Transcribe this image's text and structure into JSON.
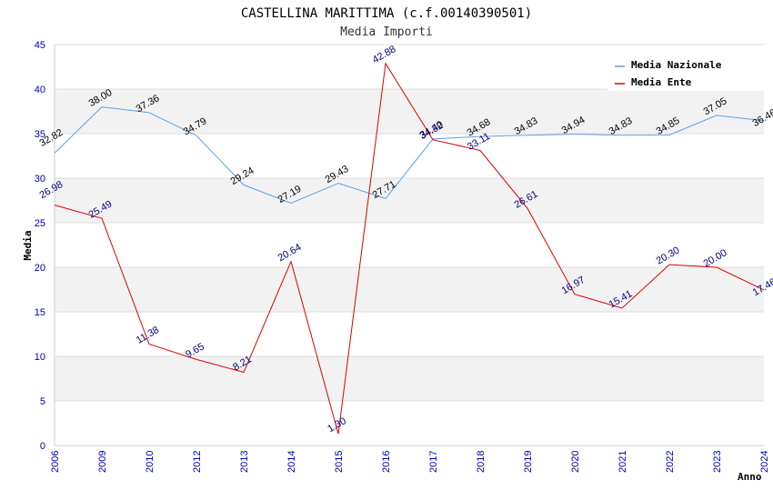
{
  "chart_data": {
    "type": "line",
    "title": "CASTELLINA MARITTIMA (c.f.00140390501)",
    "subtitle": "Media Importi",
    "xlabel": "Anno",
    "ylabel": "Media",
    "ylim": [
      0,
      45
    ],
    "yticks": [
      0,
      5,
      10,
      15,
      20,
      25,
      30,
      35,
      40,
      45
    ],
    "categories": [
      "2006",
      "2009",
      "2010",
      "2012",
      "2013",
      "2014",
      "2015",
      "2016",
      "2017",
      "2018",
      "2019",
      "2020",
      "2021",
      "2022",
      "2023",
      "2024"
    ],
    "legend_position": "top-right",
    "series": [
      {
        "name": "Media Nazionale",
        "color": "#5aa0e6",
        "values": [
          32.82,
          38.0,
          37.36,
          34.79,
          29.24,
          27.19,
          29.43,
          27.71,
          34.4,
          34.68,
          34.83,
          34.94,
          34.83,
          34.85,
          37.05,
          36.46
        ],
        "labels": [
          "32.82",
          "38.00",
          "37.36",
          "34.79",
          "29.24",
          "27.19",
          "29.43",
          "27.71",
          "34.40",
          "34.68",
          "34.83",
          "34.94",
          "34.83",
          "34.85",
          "37.05",
          "36.46"
        ]
      },
      {
        "name": "Media Ente",
        "color": "#e00000",
        "values": [
          26.98,
          25.49,
          11.38,
          9.65,
          8.21,
          20.64,
          1.3,
          42.88,
          34.32,
          33.11,
          26.61,
          16.97,
          15.41,
          20.3,
          20.0,
          17.46
        ],
        "labels": [
          "26.98",
          "25.49",
          "11.38",
          "9.65",
          "8.21",
          "20.64",
          "1.30",
          "42.88",
          "34.32",
          "33.11",
          "26.61",
          "16.97",
          "15.41",
          "20.30",
          "20.00",
          "17.46"
        ]
      }
    ]
  }
}
